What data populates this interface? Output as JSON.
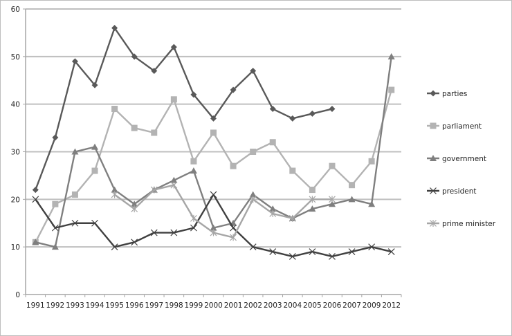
{
  "chart_data": {
    "type": "line",
    "title": "",
    "xlabel": "",
    "ylabel": "",
    "ylim": [
      0,
      60
    ],
    "yticks": [
      0,
      10,
      20,
      30,
      40,
      50,
      60
    ],
    "grid": true,
    "legend_position": "right",
    "categories": [
      "1991",
      "1992",
      "1993",
      "1994",
      "1995",
      "1996",
      "1997",
      "1998",
      "1999",
      "2000",
      "2001",
      "2002",
      "2003",
      "2004",
      "2005",
      "2006",
      "2007",
      "2009",
      "2012"
    ],
    "series": [
      {
        "name": "parties",
        "marker": "diamond",
        "color": "#595959",
        "values": [
          22,
          33,
          49,
          44,
          56,
          50,
          47,
          52,
          42,
          37,
          43,
          47,
          39,
          37,
          38,
          39,
          null,
          null,
          null
        ]
      },
      {
        "name": "parliament",
        "marker": "square",
        "color": "#b3b3b3",
        "values": [
          11,
          19,
          21,
          26,
          39,
          35,
          34,
          41,
          28,
          34,
          27,
          30,
          32,
          26,
          22,
          27,
          23,
          28,
          43
        ]
      },
      {
        "name": "government",
        "marker": "triangle",
        "color": "#7f7f7f",
        "values": [
          11,
          10,
          30,
          31,
          22,
          19,
          22,
          24,
          26,
          14,
          15,
          21,
          18,
          16,
          18,
          19,
          20,
          19,
          50
        ]
      },
      {
        "name": "president",
        "marker": "x",
        "color": "#404040",
        "values": [
          20,
          14,
          15,
          15,
          10,
          11,
          13,
          13,
          14,
          21,
          14,
          10,
          9,
          8,
          9,
          8,
          9,
          10,
          9
        ]
      },
      {
        "name": "prime minister",
        "marker": "star",
        "color": "#a6a6a6",
        "values": [
          null,
          null,
          null,
          null,
          21,
          18,
          22,
          23,
          16,
          13,
          12,
          20,
          17,
          16,
          20,
          20,
          null,
          null,
          null
        ]
      }
    ]
  },
  "colors": {
    "gridline": "#bfbfbf",
    "axis": "#a6a6a6",
    "frame": "#bdbdbd",
    "text": "#222222"
  }
}
